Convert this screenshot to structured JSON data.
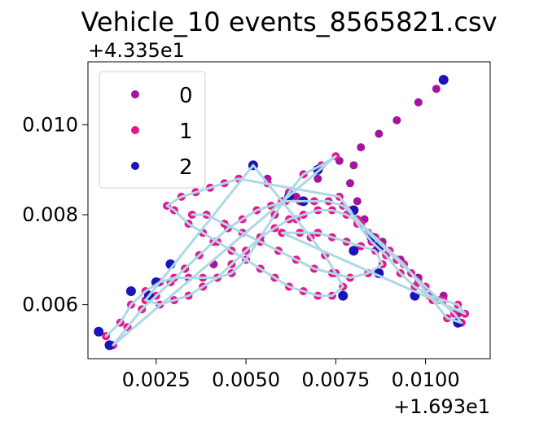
{
  "chart_data": {
    "type": "scatter",
    "title": "Vehicle_10 events_8565821.csv",
    "xlabel": "",
    "ylabel": "",
    "x_offset_label": "+1.693e1",
    "y_offset_label": "+4.335e1",
    "xlim": [
      0.0006,
      0.0118
    ],
    "ylim": [
      0.0048,
      0.0114
    ],
    "x_ticks": [
      0.0025,
      0.005,
      0.0075,
      0.01
    ],
    "x_tick_labels": [
      "0.0025",
      "0.0050",
      "0.0075",
      "0.0100"
    ],
    "y_ticks": [
      0.006,
      0.008,
      0.01
    ],
    "y_tick_labels": [
      "0.006",
      "0.008",
      "0.010"
    ],
    "grid": false,
    "legend_position": "top-left",
    "track_color": "#add8e6",
    "series": [
      {
        "name": "0",
        "color": "#a0169e",
        "points": [
          [
            0.0103,
            0.0108
          ],
          [
            0.0098,
            0.0105
          ],
          [
            0.0092,
            0.0101
          ],
          [
            0.0087,
            0.0098
          ],
          [
            0.0082,
            0.0095
          ],
          [
            0.008,
            0.0091
          ],
          [
            0.0079,
            0.0087
          ],
          [
            0.0081,
            0.0083
          ],
          [
            0.0083,
            0.0079
          ],
          [
            0.0088,
            0.0074
          ],
          [
            0.0093,
            0.007
          ],
          [
            0.0098,
            0.0066
          ],
          [
            0.0105,
            0.0062
          ],
          [
            0.0109,
            0.0058
          ],
          [
            0.0076,
            0.0092
          ],
          [
            0.007,
            0.0088
          ],
          [
            0.0064,
            0.0084
          ],
          [
            0.0041,
            0.0069
          ],
          [
            0.0033,
            0.0068
          ],
          [
            0.0056,
            0.0088
          ]
        ]
      },
      {
        "name": "1",
        "color": "#e8158c",
        "points": [
          [
            0.0011,
            0.0053
          ],
          [
            0.0015,
            0.0056
          ],
          [
            0.0018,
            0.006
          ],
          [
            0.0022,
            0.0063
          ],
          [
            0.0026,
            0.0065
          ],
          [
            0.003,
            0.0066
          ],
          [
            0.0034,
            0.0066
          ],
          [
            0.0038,
            0.0066
          ],
          [
            0.0042,
            0.0066
          ],
          [
            0.0046,
            0.0067
          ],
          [
            0.005,
            0.007
          ],
          [
            0.0054,
            0.0075
          ],
          [
            0.0058,
            0.008
          ],
          [
            0.0062,
            0.0085
          ],
          [
            0.0066,
            0.0089
          ],
          [
            0.0071,
            0.0091
          ],
          [
            0.0075,
            0.0093
          ],
          [
            0.0013,
            0.0051
          ],
          [
            0.0017,
            0.0055
          ],
          [
            0.0021,
            0.0059
          ],
          [
            0.0025,
            0.0062
          ],
          [
            0.0029,
            0.0065
          ],
          [
            0.0033,
            0.0068
          ],
          [
            0.0037,
            0.0071
          ],
          [
            0.0041,
            0.0074
          ],
          [
            0.0045,
            0.0077
          ],
          [
            0.0049,
            0.0079
          ],
          [
            0.0053,
            0.0081
          ],
          [
            0.0057,
            0.0082
          ],
          [
            0.0061,
            0.0083
          ],
          [
            0.0065,
            0.0083
          ],
          [
            0.0069,
            0.0083
          ],
          [
            0.0073,
            0.0083
          ],
          [
            0.0077,
            0.0082
          ],
          [
            0.0081,
            0.0079
          ],
          [
            0.0084,
            0.0076
          ],
          [
            0.0088,
            0.0073
          ],
          [
            0.0092,
            0.007
          ],
          [
            0.0096,
            0.0067
          ],
          [
            0.01,
            0.0064
          ],
          [
            0.0104,
            0.0061
          ],
          [
            0.0108,
            0.0058
          ],
          [
            0.011,
            0.0056
          ],
          [
            0.0106,
            0.0057
          ],
          [
            0.0102,
            0.0061
          ],
          [
            0.0098,
            0.0065
          ],
          [
            0.0094,
            0.0069
          ],
          [
            0.009,
            0.0072
          ],
          [
            0.0086,
            0.0075
          ],
          [
            0.0082,
            0.0078
          ],
          [
            0.0078,
            0.008
          ],
          [
            0.0074,
            0.0081
          ],
          [
            0.007,
            0.0081
          ],
          [
            0.0066,
            0.008
          ],
          [
            0.0062,
            0.0079
          ],
          [
            0.0058,
            0.0077
          ],
          [
            0.0054,
            0.0075
          ],
          [
            0.005,
            0.0072
          ],
          [
            0.0046,
            0.0069
          ],
          [
            0.0042,
            0.0066
          ],
          [
            0.0038,
            0.0064
          ],
          [
            0.0034,
            0.0062
          ],
          [
            0.003,
            0.0061
          ],
          [
            0.0026,
            0.006
          ],
          [
            0.0022,
            0.0061
          ],
          [
            0.0052,
            0.0091
          ],
          [
            0.0056,
            0.0087
          ],
          [
            0.006,
            0.0083
          ],
          [
            0.0064,
            0.0079
          ],
          [
            0.0068,
            0.0075
          ],
          [
            0.0072,
            0.0071
          ],
          [
            0.0075,
            0.0067
          ],
          [
            0.0077,
            0.0064
          ],
          [
            0.0074,
            0.0062
          ],
          [
            0.007,
            0.0062
          ],
          [
            0.0066,
            0.0063
          ],
          [
            0.0062,
            0.0064
          ],
          [
            0.0058,
            0.0066
          ],
          [
            0.0054,
            0.0068
          ],
          [
            0.005,
            0.007
          ],
          [
            0.0046,
            0.0072
          ],
          [
            0.0042,
            0.0074
          ],
          [
            0.0038,
            0.0076
          ],
          [
            0.0034,
            0.0078
          ],
          [
            0.003,
            0.0081
          ],
          [
            0.0028,
            0.0082
          ],
          [
            0.0032,
            0.0084
          ],
          [
            0.0036,
            0.0085
          ],
          [
            0.004,
            0.0086
          ],
          [
            0.0044,
            0.0087
          ],
          [
            0.0048,
            0.0088
          ],
          [
            0.0076,
            0.0084
          ],
          [
            0.0079,
            0.0081
          ],
          [
            0.0081,
            0.0078
          ],
          [
            0.0085,
            0.0074
          ],
          [
            0.0089,
            0.0071
          ],
          [
            0.0093,
            0.0067
          ],
          [
            0.0097,
            0.0064
          ],
          [
            0.0101,
            0.0062
          ],
          [
            0.0105,
            0.0061
          ],
          [
            0.0109,
            0.006
          ],
          [
            0.0111,
            0.0058
          ],
          [
            0.006,
            0.0076
          ],
          [
            0.0065,
            0.0076
          ],
          [
            0.007,
            0.0076
          ],
          [
            0.0074,
            0.0075
          ],
          [
            0.0078,
            0.0074
          ],
          [
            0.0082,
            0.0073
          ],
          [
            0.0086,
            0.0072
          ],
          [
            0.0088,
            0.0069
          ],
          [
            0.0084,
            0.0067
          ],
          [
            0.0079,
            0.0066
          ],
          [
            0.0074,
            0.0067
          ],
          [
            0.0069,
            0.0068
          ],
          [
            0.0064,
            0.007
          ],
          [
            0.0059,
            0.0072
          ],
          [
            0.0054,
            0.0074
          ],
          [
            0.0049,
            0.0076
          ],
          [
            0.0044,
            0.0078
          ],
          [
            0.0039,
            0.008
          ],
          [
            0.0035,
            0.008
          ]
        ]
      },
      {
        "name": "2",
        "color": "#1b14b8",
        "points": [
          [
            0.0105,
            0.011
          ],
          [
            0.0009,
            0.0054
          ],
          [
            0.0012,
            0.0051
          ],
          [
            0.0018,
            0.0063
          ],
          [
            0.0023,
            0.0062
          ],
          [
            0.0025,
            0.0065
          ],
          [
            0.0029,
            0.0069
          ],
          [
            0.0052,
            0.0091
          ],
          [
            0.0062,
            0.0084
          ],
          [
            0.0066,
            0.0083
          ],
          [
            0.007,
            0.009
          ],
          [
            0.008,
            0.0081
          ],
          [
            0.008,
            0.0072
          ],
          [
            0.0085,
            0.0075
          ],
          [
            0.0087,
            0.0067
          ],
          [
            0.0087,
            0.0073
          ],
          [
            0.0077,
            0.0062
          ],
          [
            0.0097,
            0.0062
          ],
          [
            0.0109,
            0.0056
          ]
        ]
      }
    ]
  }
}
